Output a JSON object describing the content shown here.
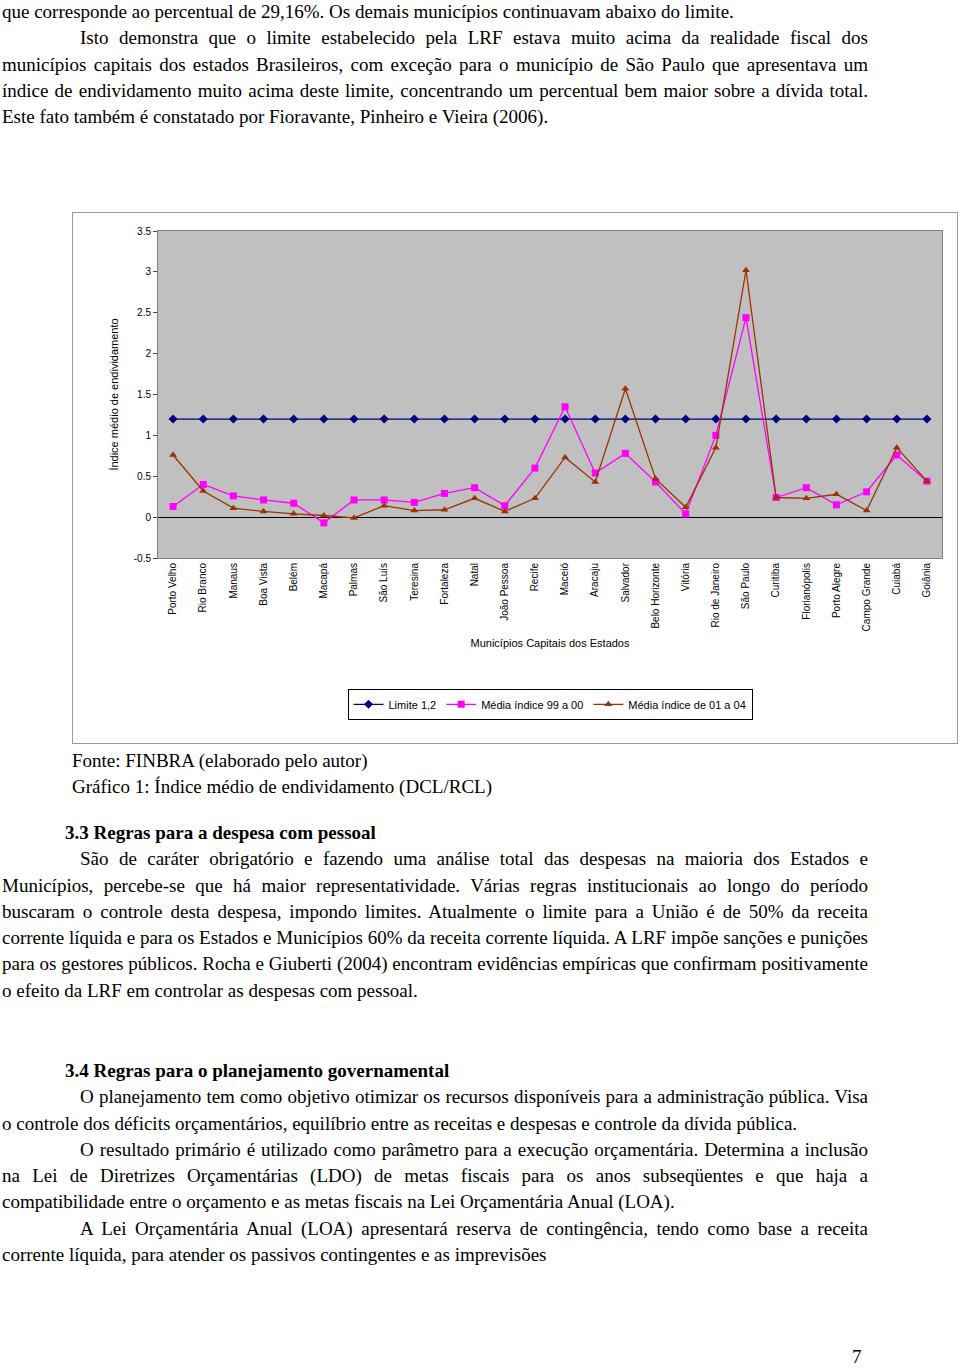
{
  "page": {
    "top_text": {
      "continuation": "que corresponde ao percentual de 29,16%. Os demais municípios continuavam abaixo do limite.",
      "paragraph": "Isto demonstra que o limite estabelecido pela LRF estava muito acima da realidade fiscal dos municípios capitais dos estados Brasileiros, com exceção para o município de São Paulo que apresentava um índice de endividamento muito acima deste limite, concentrando um percentual bem maior sobre a dívida total. Este fato também é constatado por Fioravante, Pinheiro e Vieira (2006)."
    },
    "caption_source": "Fonte: FINBRA (elaborado pelo autor)",
    "caption_title": "Gráfico 1: Índice médio de endividamento (DCL/RCL)",
    "sections": [
      {
        "heading": "3.3 Regras para a despesa com pessoal",
        "paragraphs": [
          "São de caráter obrigatório e fazendo uma análise total das despesas na maioria dos Estados e Municípios, percebe-se que há maior representatividade. Várias regras institucionais ao longo do período buscaram o controle desta despesa, impondo limites. Atualmente o limite para a União é de 50% da receita corrente líquida e para os Estados e Municípios 60% da receita corrente líquida. A LRF impõe sanções e punições para os gestores públicos. Rocha e Giuberti (2004) encontram evidências empíricas que confirmam positivamente o efeito da LRF em controlar as despesas com pessoal."
        ]
      },
      {
        "heading": "3.4 Regras para o planejamento governamental",
        "paragraphs": [
          "O planejamento tem como objetivo otimizar os recursos disponíveis para a administração pública. Visa o controle dos déficits orçamentários, equilíbrio entre as receitas e despesas e controle da dívida pública.",
          "O resultado primário é utilizado como parâmetro para a execução orçamentária. Determina a inclusão na Lei de Diretrizes Orçamentárias (LDO) de metas fiscais para os anos subseqüentes e que haja a compatibilidade entre o orçamento e as metas fiscais na Lei Orçamentária Anual (LOA).",
          "A Lei Orçamentária Anual (LOA) apresentará reserva de contingência, tendo como base a receita corrente líquida, para atender os passivos contingentes e as imprevisões"
        ]
      }
    ],
    "page_number": "7"
  },
  "chart_data": {
    "type": "line",
    "x_label": "Municípios Capitais dos Estados",
    "y_label": "Índice médio de endividamento",
    "categories": [
      "Porto Velho",
      "Rio Branco",
      "Manaus",
      "Boa Vista",
      "Belém",
      "Macapá",
      "Palmas",
      "São Luís",
      "Teresina",
      "Fortaleza",
      "Natal",
      "João Pessoa",
      "Recife",
      "Maceió",
      "Aracaju",
      "Salvador",
      "Belo Horizonte",
      "Vitória",
      "Rio de Janeiro",
      "São Paulo",
      "Curitiba",
      "Florianópolis",
      "Porto Alegre",
      "Campo Grande",
      "Cuiabá",
      "Goiânia"
    ],
    "series": [
      {
        "name": "Limite 1,2",
        "color": "#000080",
        "marker": "diamond",
        "line_style": "solid",
        "values": [
          1.2,
          1.2,
          1.2,
          1.2,
          1.2,
          1.2,
          1.2,
          1.2,
          1.2,
          1.2,
          1.2,
          1.2,
          1.2,
          1.2,
          1.2,
          1.2,
          1.2,
          1.2,
          1.2,
          1.2,
          1.2,
          1.2,
          1.2,
          1.2,
          1.2,
          1.2
        ]
      },
      {
        "name": "Média índice 99 a 00",
        "color": "#ff00ff",
        "marker": "square",
        "line_style": "solid",
        "values": [
          0.13,
          0.4,
          0.26,
          0.21,
          0.17,
          -0.07,
          0.21,
          0.21,
          0.18,
          0.29,
          0.36,
          0.14,
          0.6,
          1.35,
          0.54,
          0.78,
          0.43,
          0.04,
          1.0,
          2.44,
          0.24,
          0.36,
          0.15,
          0.31,
          0.76,
          0.44
        ]
      },
      {
        "name": "Média índice de 01 a 04",
        "color": "#993300",
        "marker": "triangle-up",
        "line_style": "solid",
        "values": [
          0.76,
          0.32,
          0.11,
          0.07,
          0.04,
          0.02,
          -0.01,
          0.14,
          0.08,
          0.09,
          0.23,
          0.07,
          0.23,
          0.73,
          0.43,
          1.57,
          0.47,
          0.12,
          0.85,
          3.02,
          0.24,
          0.23,
          0.28,
          0.08,
          0.85,
          0.44
        ]
      }
    ],
    "ylim": [
      -0.5,
      3.5
    ],
    "yticks": [
      -0.5,
      0,
      0.5,
      1,
      1.5,
      2,
      2.5,
      3,
      3.5
    ],
    "grid": false,
    "legend": "bottom"
  }
}
